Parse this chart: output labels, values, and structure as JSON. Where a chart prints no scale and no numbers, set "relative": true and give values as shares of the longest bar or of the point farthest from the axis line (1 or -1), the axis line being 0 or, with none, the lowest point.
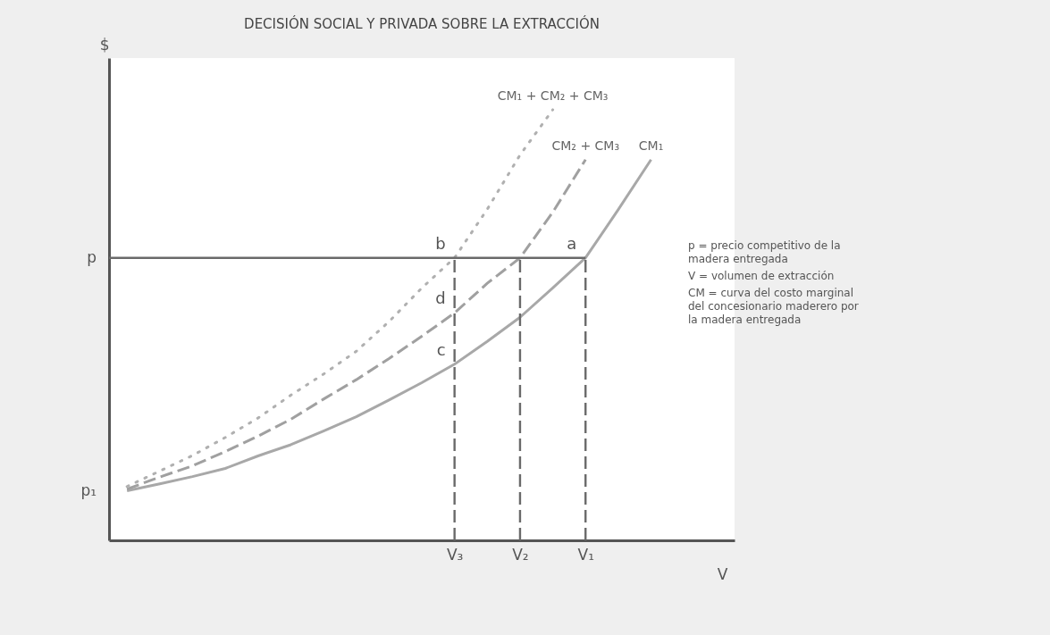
{
  "chart_data": {
    "type": "line",
    "title": "DECISIÓN SOCIAL Y PRIVADA SOBRE LA EXTRACCIÓN",
    "xlabel": "V",
    "ylabel": "$",
    "relative": true,
    "marker": "none",
    "categories": [
      null,
      null,
      null,
      null,
      null,
      null,
      null,
      null,
      null,
      null,
      "V₃",
      null,
      "V₂",
      null,
      "V₁",
      null,
      null,
      null,
      null
    ],
    "series": [
      {
        "name": "CM₁",
        "color": "#a8a8a8",
        "line_style": "solid",
        "values": [
          0.115,
          0.131,
          0.148,
          0.167,
          0.196,
          0.222,
          0.254,
          0.287,
          0.326,
          0.366,
          0.409,
          0.462,
          0.518,
          0.586,
          0.656,
          0.768,
          0.884,
          null,
          null
        ]
      },
      {
        "name": "CM₂ + CM₃",
        "color": "#a0a0a0",
        "line_style": "dashed",
        "values": [
          0.119,
          0.147,
          0.173,
          0.206,
          0.242,
          0.281,
          0.328,
          0.373,
          0.422,
          0.474,
          0.528,
          0.597,
          0.656,
          0.762,
          0.884,
          null,
          null,
          null,
          null
        ]
      },
      {
        "name": "CM₁ + CM₂ + CM₃",
        "color": "#b0b0b0",
        "line_style": "dotted",
        "values": [
          0.125,
          0.161,
          0.197,
          0.239,
          0.284,
          0.337,
          0.386,
          0.439,
          0.508,
          0.586,
          0.656,
          0.769,
          0.895,
          1,
          null,
          null,
          null,
          null,
          null
        ]
      }
    ],
    "ref_lines": [
      {
        "axis": "y",
        "value": 0.656,
        "label": "p",
        "color": "#6a6a6a",
        "line_style": "solid"
      },
      {
        "axis": "x",
        "value": "V₃",
        "color": "#6a6a6a",
        "line_style": "dashed"
      },
      {
        "axis": "x",
        "value": "V₂",
        "color": "#6a6a6a",
        "line_style": "dashed"
      },
      {
        "axis": "x",
        "value": "V₁",
        "color": "#6a6a6a",
        "line_style": "dashed"
      }
    ],
    "annotations": [
      {
        "text": "a",
        "x": "V₁",
        "y": 0.656
      },
      {
        "text": "b",
        "x": "V₃",
        "y": 0.656
      },
      {
        "text": "d",
        "x": "V₃",
        "y": 0.528
      },
      {
        "text": "c",
        "x": "V₃",
        "y": 0.409
      },
      "p₁",
      "p = precio competitivo de la madera entregada",
      "V = volumen de extracción",
      "CM = curva del costo marginal del concesionario maderero por la madera entregada"
    ]
  }
}
